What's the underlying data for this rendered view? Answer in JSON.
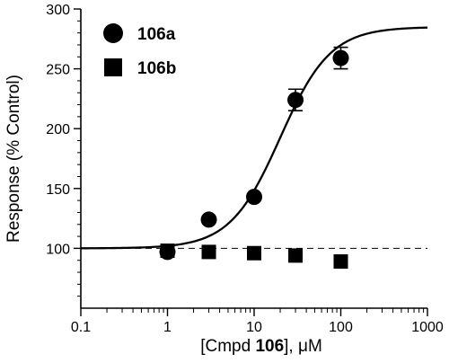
{
  "chart_data": {
    "type": "scatter",
    "x_scale": "log",
    "xlim": [
      0.1,
      1000
    ],
    "ylim": [
      50,
      300
    ],
    "x_ticks": [
      0.1,
      1,
      10,
      100,
      1000
    ],
    "y_ticks": [
      100,
      150,
      200,
      250,
      300
    ],
    "x_tick_labels": [
      "0.1",
      "1",
      "10",
      "100",
      "1000"
    ],
    "y_tick_labels": [
      "100",
      "150",
      "200",
      "250",
      "300"
    ],
    "xlabel_prefix": "[Cmpd ",
    "xlabel_bold": "106",
    "xlabel_suffix": "], μM",
    "ylabel": "Response (% Control)",
    "legend_position": "top-left",
    "grid": false,
    "baseline": {
      "y": 100,
      "style": "dashed"
    },
    "series": [
      {
        "name": "106a",
        "marker": "circle",
        "x": [
          1,
          3,
          10,
          30,
          100
        ],
        "y": [
          97,
          124,
          143,
          224,
          259
        ],
        "err": [
          0,
          0,
          0,
          9,
          9
        ]
      },
      {
        "name": "106b",
        "marker": "square",
        "x": [
          1,
          3,
          10,
          30,
          100
        ],
        "y": [
          98,
          97,
          96,
          94,
          89
        ],
        "err": [
          0,
          0,
          0,
          0,
          0
        ]
      }
    ],
    "fit": {
      "series": "106a",
      "model": "sigmoidal dose-response",
      "bottom": 100,
      "top": 285,
      "ec50": 20,
      "hill": 1.5
    }
  }
}
